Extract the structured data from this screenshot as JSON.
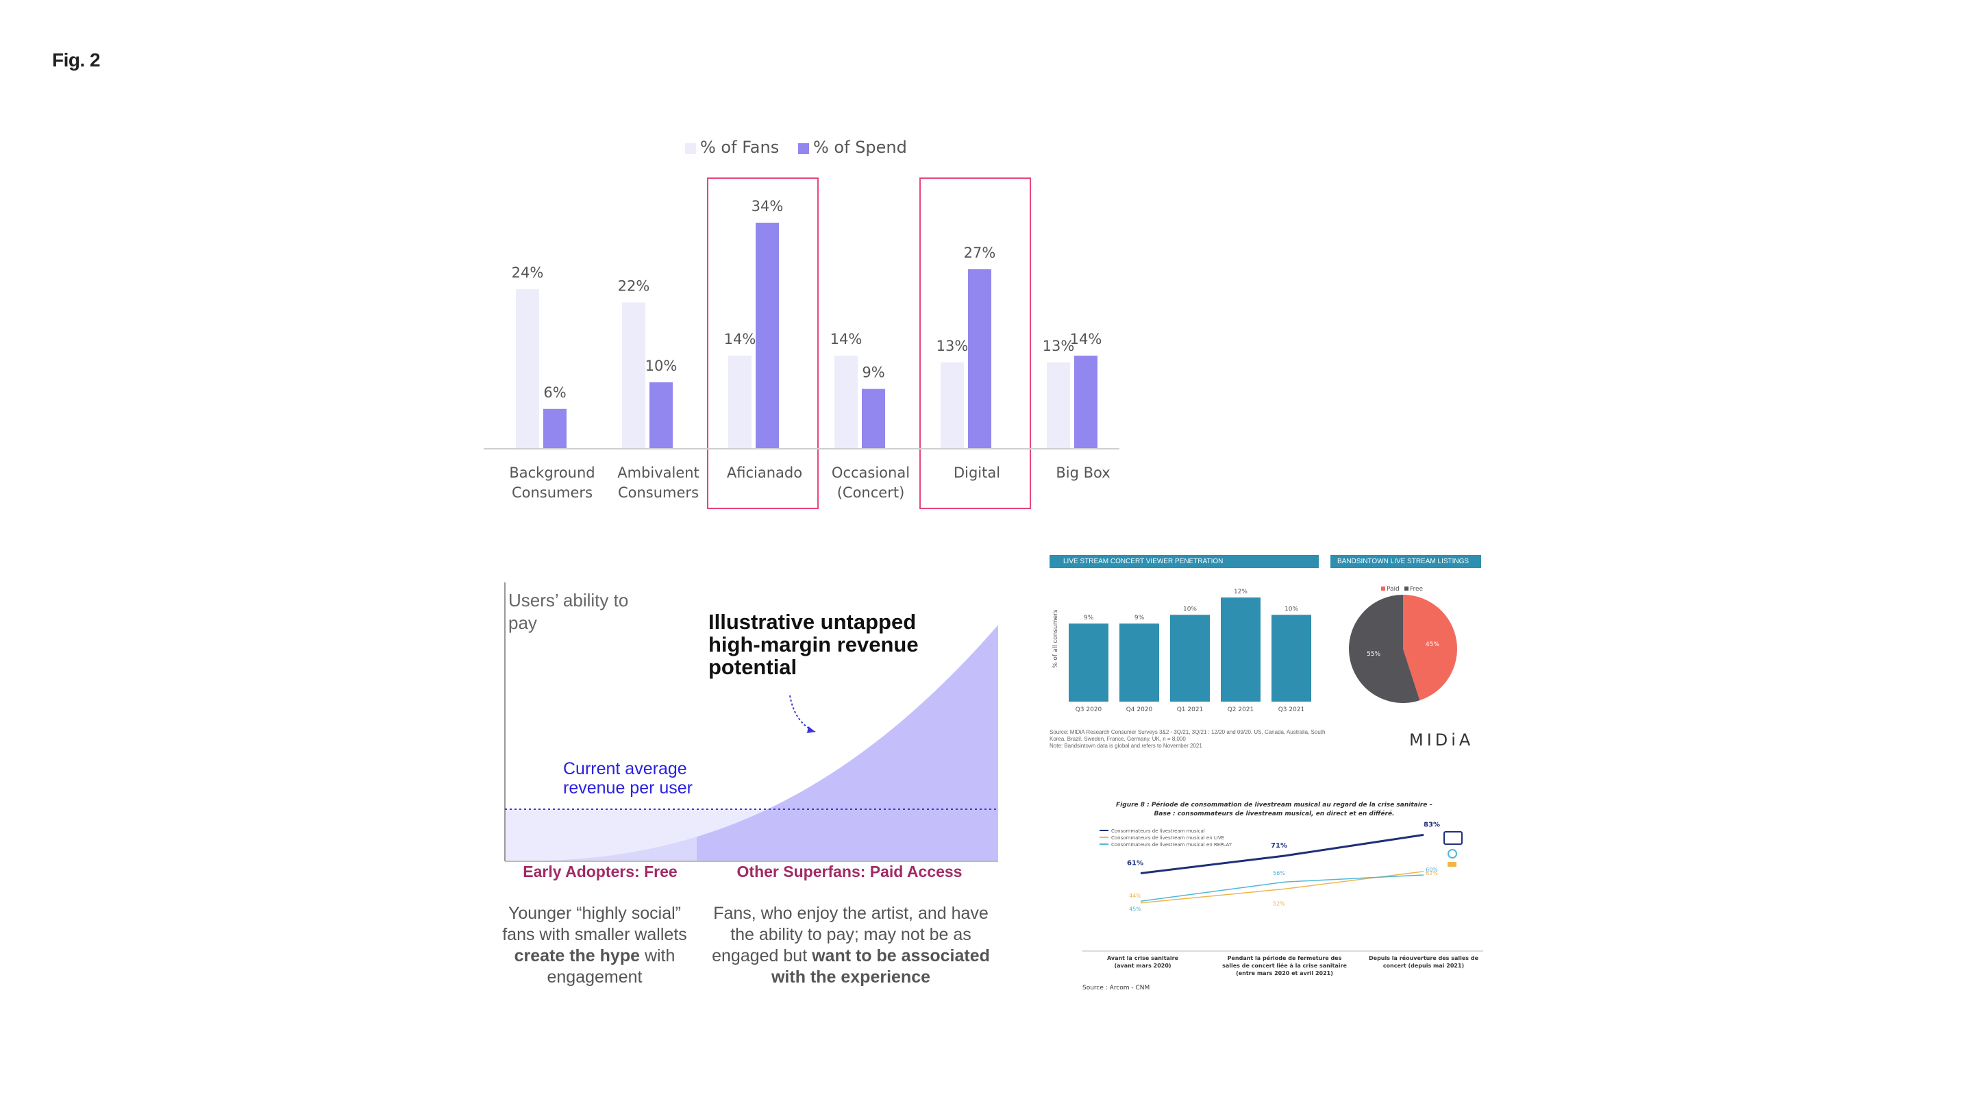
{
  "figure_label": "Fig. 2",
  "colors": {
    "fans": "#ececfb",
    "spend": "#9287ee",
    "highlight": "#e8457a",
    "teal": "#2e8fb0",
    "pink": "#f26a5c",
    "dark": "#555459",
    "area": "#c4bffb",
    "area_light": "#ecebfd",
    "blue_text": "#2a20e0",
    "magenta_text": "#a12a66"
  },
  "chart_data": [
    {
      "type": "bar",
      "legend": [
        "% of Fans",
        "% of Spend"
      ],
      "legend_position": "top",
      "categories": [
        [
          "Background",
          "Consumers"
        ],
        [
          "Ambivalent",
          "Consumers"
        ],
        [
          "Aficianado"
        ],
        [
          "Occasional",
          "(Concert)"
        ],
        [
          "Digital"
        ],
        [
          "Big Box"
        ]
      ],
      "series": [
        {
          "name": "% of Fans",
          "values": [
            24,
            22,
            14,
            14,
            13,
            13
          ]
        },
        {
          "name": "% of Spend",
          "values": [
            6,
            10,
            34,
            9,
            27,
            14
          ]
        }
      ],
      "value_labels": {
        "fans": [
          "24%",
          "22%",
          "14%",
          "14%",
          "13%",
          "13%"
        ],
        "spend": [
          "6%",
          "10%",
          "34%",
          "9%",
          "27%",
          "14%"
        ]
      },
      "highlighted_categories": [
        2,
        4
      ],
      "ylim": [
        0,
        34
      ]
    },
    {
      "type": "area",
      "ylabel": "Users’ ability to pay",
      "annotation_top": "Illustrative untapped high-margin revenue potential",
      "annotation_line": "Current average revenue per user",
      "segments": [
        "Early Adopters:  Free",
        "Other Superfans: Paid Access"
      ]
    },
    {
      "type": "bar",
      "title": "LIVE STREAM CONCERT VIEWER PENETRATION",
      "ylabel": "% of all consumers",
      "categories": [
        "Q3 2020",
        "Q4 2020",
        "Q1 2021",
        "Q2 2021",
        "Q3 2021"
      ],
      "values": [
        9,
        9,
        10,
        12,
        10
      ],
      "labels": [
        "9%",
        "9%",
        "10%",
        "12%",
        "10%"
      ],
      "ylim": [
        0,
        12
      ]
    },
    {
      "type": "pie",
      "title": "BANDSINTOWN LIVE STREAM LISTINGS",
      "legend": [
        "Paid",
        "Free"
      ],
      "values": [
        45,
        55
      ],
      "labels": [
        "45%",
        "55%"
      ]
    },
    {
      "type": "line",
      "title": "Figure 8 : Période de consommation de livestream musical au regard de la crise sanitaire –",
      "subtitle": "Base : consommateurs de livestream musical, en direct et en différé.",
      "categories": [
        [
          "Avant la crise sanitaire",
          "(avant mars 2020)"
        ],
        [
          "Pendant la période de fermeture des",
          "salles de concert liée à la crise sanitaire",
          "(entre mars 2020 et avril 2021)"
        ],
        [
          "Depuis la réouverture des salles de",
          "concert (depuis mai 2021)"
        ]
      ],
      "series": [
        {
          "name": "Consommateurs de livestream musical",
          "values": [
            61,
            71,
            83
          ]
        },
        {
          "name": "Consommateurs de livestream musical en LIVE",
          "values": [
            44,
            52,
            62
          ]
        },
        {
          "name": "Consommateurs de livestream musical en REPLAY",
          "values": [
            45,
            56,
            60
          ]
        }
      ]
    }
  ],
  "midia": {
    "source": "Source: MIDiA Research Consumer Surveys 3&2 - 3Q/21, 3Q/21 : 12/20 and 09/20. US, Canada, Australia, South Korea, Brazil, Sweden, France, Germany, UK, n = 8,000",
    "note": "Note: Bandsintown data is global and refers to November 2021",
    "logo": "MIDiA"
  },
  "superfans_text": {
    "left_plain1": "Younger “highly social” fans with smaller wallets",
    "left_bold1": "create the hype",
    "left_plain2": "with engagement",
    "right_plain1": "Fans, who enjoy the artist, and have the ability to pay; may not be as engaged but",
    "right_bold1": "want to be associated with the experience"
  },
  "arcom_source": "Source : Arcom - CNM"
}
